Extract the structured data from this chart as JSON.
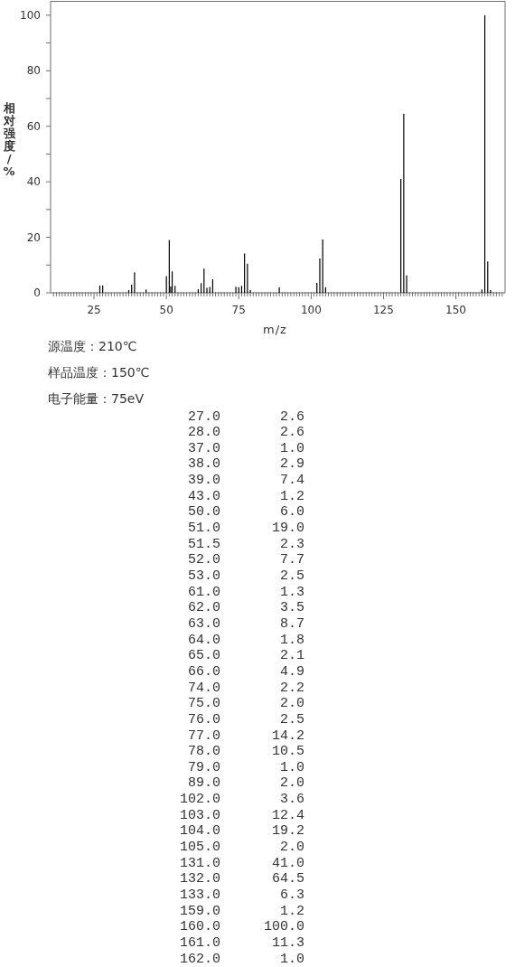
{
  "chart_data": [
    {
      "type": "bar",
      "xlabel": "m/z",
      "ylabel": "相对强度/%",
      "color": "#000000",
      "x": [
        27,
        28,
        37,
        38,
        39,
        43,
        50,
        51,
        51.5,
        52,
        53,
        61,
        62,
        63,
        64,
        65,
        66,
        74,
        75,
        76,
        77,
        78,
        79,
        89,
        102,
        103,
        104,
        105,
        131,
        132,
        133,
        159,
        160,
        161,
        162
      ],
      "values": [
        2.6,
        2.6,
        1.0,
        2.9,
        7.4,
        1.2,
        6.0,
        19.0,
        2.3,
        7.7,
        2.5,
        1.3,
        3.5,
        8.7,
        1.8,
        2.1,
        4.9,
        2.2,
        2.0,
        2.5,
        14.2,
        10.5,
        1.0,
        2.0,
        3.6,
        12.4,
        19.2,
        2.0,
        41.0,
        64.5,
        6.3,
        1.2,
        100.0,
        11.3,
        1.0
      ],
      "xlim": [
        10,
        167
      ],
      "ylim": [
        0,
        105
      ],
      "yticks": [
        0,
        {
          "value": 10,
          "label": null
        },
        20,
        {
          "value": 30,
          "label": null
        },
        40,
        {
          "value": 50,
          "label": null
        },
        60,
        {
          "value": 70,
          "label": null
        },
        80,
        {
          "value": 90,
          "label": null
        },
        100
      ],
      "xticks": [
        {
          "value": 11,
          "label": null
        },
        {
          "value": 12,
          "label": null
        },
        {
          "value": 13,
          "label": null
        },
        {
          "value": 14,
          "label": null
        },
        {
          "value": 15,
          "label": null
        },
        {
          "value": 16,
          "label": null
        },
        {
          "value": 17,
          "label": null
        },
        {
          "value": 18,
          "label": null
        },
        {
          "value": 19,
          "label": null
        },
        {
          "value": 20,
          "label": null
        },
        {
          "value": 21,
          "label": null
        },
        {
          "value": 22,
          "label": null
        },
        {
          "value": 23,
          "label": null
        },
        {
          "value": 24,
          "label": null
        },
        25,
        {
          "value": 26,
          "label": null
        },
        {
          "value": 27,
          "label": null
        },
        {
          "value": 28,
          "label": null
        },
        {
          "value": 29,
          "label": null
        },
        {
          "value": 30,
          "label": null
        },
        {
          "value": 31,
          "label": null
        },
        {
          "value": 32,
          "label": null
        },
        {
          "value": 33,
          "label": null
        },
        {
          "value": 34,
          "label": null
        },
        {
          "value": 35,
          "label": null
        },
        {
          "value": 36,
          "label": null
        },
        {
          "value": 37,
          "label": null
        },
        {
          "value": 38,
          "label": null
        },
        {
          "value": 39,
          "label": null
        },
        {
          "value": 40,
          "label": null
        },
        {
          "value": 41,
          "label": null
        },
        {
          "value": 42,
          "label": null
        },
        {
          "value": 43,
          "label": null
        },
        {
          "value": 44,
          "label": null
        },
        {
          "value": 45,
          "label": null
        },
        {
          "value": 46,
          "label": null
        },
        {
          "value": 47,
          "label": null
        },
        {
          "value": 48,
          "label": null
        },
        {
          "value": 49,
          "label": null
        },
        50,
        {
          "value": 51,
          "label": null
        },
        {
          "value": 52,
          "label": null
        },
        {
          "value": 53,
          "label": null
        },
        {
          "value": 54,
          "label": null
        },
        {
          "value": 55,
          "label": null
        },
        {
          "value": 56,
          "label": null
        },
        {
          "value": 57,
          "label": null
        },
        {
          "value": 58,
          "label": null
        },
        {
          "value": 59,
          "label": null
        },
        {
          "value": 60,
          "label": null
        },
        {
          "value": 61,
          "label": null
        },
        {
          "value": 62,
          "label": null
        },
        {
          "value": 63,
          "label": null
        },
        {
          "value": 64,
          "label": null
        },
        {
          "value": 65,
          "label": null
        },
        {
          "value": 66,
          "label": null
        },
        {
          "value": 67,
          "label": null
        },
        {
          "value": 68,
          "label": null
        },
        {
          "value": 69,
          "label": null
        },
        {
          "value": 70,
          "label": null
        },
        {
          "value": 71,
          "label": null
        },
        {
          "value": 72,
          "label": null
        },
        {
          "value": 73,
          "label": null
        },
        {
          "value": 74,
          "label": null
        },
        75,
        {
          "value": 76,
          "label": null
        },
        {
          "value": 77,
          "label": null
        },
        {
          "value": 78,
          "label": null
        },
        {
          "value": 79,
          "label": null
        },
        {
          "value": 80,
          "label": null
        },
        {
          "value": 81,
          "label": null
        },
        {
          "value": 82,
          "label": null
        },
        {
          "value": 83,
          "label": null
        },
        {
          "value": 84,
          "label": null
        },
        {
          "value": 85,
          "label": null
        },
        {
          "value": 86,
          "label": null
        },
        {
          "value": 87,
          "label": null
        },
        {
          "value": 88,
          "label": null
        },
        {
          "value": 89,
          "label": null
        },
        {
          "value": 90,
          "label": null
        },
        {
          "value": 91,
          "label": null
        },
        {
          "value": 92,
          "label": null
        },
        {
          "value": 93,
          "label": null
        },
        {
          "value": 94,
          "label": null
        },
        {
          "value": 95,
          "label": null
        },
        {
          "value": 96,
          "label": null
        },
        {
          "value": 97,
          "label": null
        },
        {
          "value": 98,
          "label": null
        },
        {
          "value": 99,
          "label": null
        },
        100,
        {
          "value": 101,
          "label": null
        },
        {
          "value": 102,
          "label": null
        },
        {
          "value": 103,
          "label": null
        },
        {
          "value": 104,
          "label": null
        },
        {
          "value": 105,
          "label": null
        },
        {
          "value": 106,
          "label": null
        },
        {
          "value": 107,
          "label": null
        },
        {
          "value": 108,
          "label": null
        },
        {
          "value": 109,
          "label": null
        },
        {
          "value": 110,
          "label": null
        },
        {
          "value": 111,
          "label": null
        },
        {
          "value": 112,
          "label": null
        },
        {
          "value": 113,
          "label": null
        },
        {
          "value": 114,
          "label": null
        },
        {
          "value": 115,
          "label": null
        },
        {
          "value": 116,
          "label": null
        },
        {
          "value": 117,
          "label": null
        },
        {
          "value": 118,
          "label": null
        },
        {
          "value": 119,
          "label": null
        },
        {
          "value": 120,
          "label": null
        },
        {
          "value": 121,
          "label": null
        },
        {
          "value": 122,
          "label": null
        },
        {
          "value": 123,
          "label": null
        },
        {
          "value": 124,
          "label": null
        },
        125,
        {
          "value": 126,
          "label": null
        },
        {
          "value": 127,
          "label": null
        },
        {
          "value": 128,
          "label": null
        },
        {
          "value": 129,
          "label": null
        },
        {
          "value": 130,
          "label": null
        },
        {
          "value": 131,
          "label": null
        },
        {
          "value": 132,
          "label": null
        },
        {
          "value": 133,
          "label": null
        },
        {
          "value": 134,
          "label": null
        },
        {
          "value": 135,
          "label": null
        },
        {
          "value": 136,
          "label": null
        },
        {
          "value": 137,
          "label": null
        },
        {
          "value": 138,
          "label": null
        },
        {
          "value": 139,
          "label": null
        },
        {
          "value": 140,
          "label": null
        },
        {
          "value": 141,
          "label": null
        },
        {
          "value": 142,
          "label": null
        },
        {
          "value": 143,
          "label": null
        },
        {
          "value": 144,
          "label": null
        },
        {
          "value": 145,
          "label": null
        },
        {
          "value": 146,
          "label": null
        },
        {
          "value": 147,
          "label": null
        },
        {
          "value": 148,
          "label": null
        },
        {
          "value": 149,
          "label": null
        },
        150,
        {
          "value": 151,
          "label": null
        },
        {
          "value": 152,
          "label": null
        },
        {
          "value": 153,
          "label": null
        },
        {
          "value": 154,
          "label": null
        },
        {
          "value": 155,
          "label": null
        },
        {
          "value": 156,
          "label": null
        },
        {
          "value": 157,
          "label": null
        },
        {
          "value": 158,
          "label": null
        },
        {
          "value": 159,
          "label": null
        },
        {
          "value": 160,
          "label": null
        },
        {
          "value": 161,
          "label": null
        },
        {
          "value": 162,
          "label": null
        },
        {
          "value": 163,
          "label": null
        },
        {
          "value": 164,
          "label": null
        },
        {
          "value": 165,
          "label": null
        },
        {
          "value": 166,
          "label": null
        }
      ],
      "annotations": [
        "源温度：210℃",
        "样品温度：150℃",
        "电子能量：75eV"
      ]
    },
    {
      "type": "other",
      "annotations": [
        "27.0",
        "2.6",
        "28.0",
        "2.6",
        "37.0",
        "1.0",
        "38.0",
        "2.9",
        "39.0",
        "7.4",
        "43.0",
        "1.2",
        "50.0",
        "6.0",
        "51.0",
        "19.0",
        "51.5",
        "2.3",
        "52.0",
        "7.7",
        "53.0",
        "2.5",
        "61.0",
        "1.3",
        "62.0",
        "3.5",
        "63.0",
        "8.7",
        "64.0",
        "1.8",
        "65.0",
        "2.1",
        "66.0",
        "4.9",
        "74.0",
        "2.2",
        "75.0",
        "2.0",
        "76.0",
        "2.5",
        "77.0",
        "14.2",
        "78.0",
        "10.5",
        "79.0",
        "1.0",
        "89.0",
        "2.0",
        "102.0",
        "3.6",
        "103.0",
        "12.4",
        "104.0",
        "19.2",
        "105.0",
        "2.0",
        "131.0",
        "41.0",
        "132.0",
        "64.5",
        "133.0",
        "6.3",
        "159.0",
        "1.2",
        "160.0",
        "100.0",
        "161.0",
        "11.3",
        "162.0",
        "1.0"
      ]
    }
  ]
}
